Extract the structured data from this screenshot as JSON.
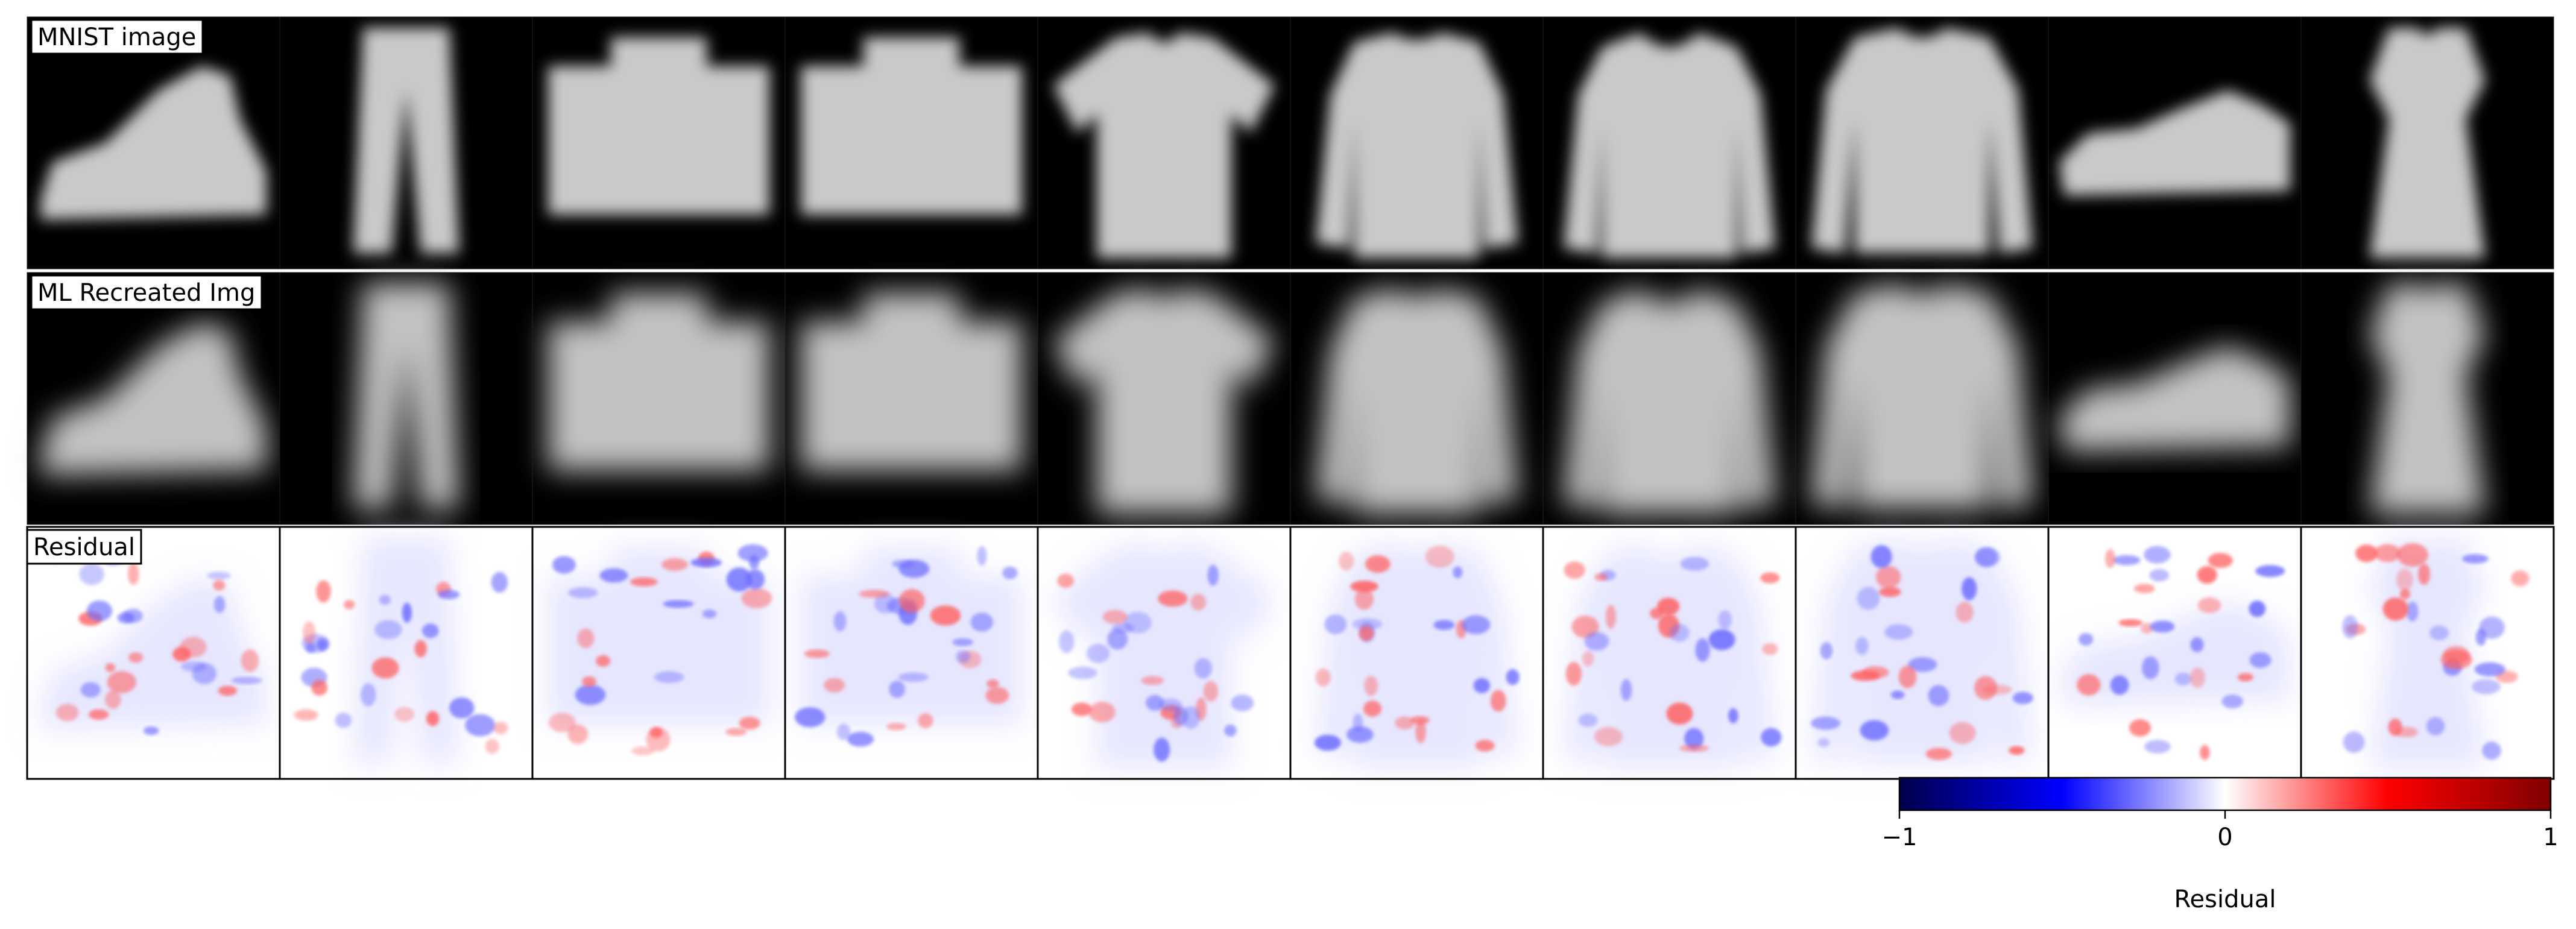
{
  "chart_data": {
    "type": "heatmap",
    "title": "",
    "rows": [
      {
        "name": "MNIST image",
        "colormap": "gray",
        "background": "#000000"
      },
      {
        "name": "ML Recreated Img",
        "colormap": "gray",
        "background": "#000000"
      },
      {
        "name": "Residual",
        "colormap": "seismic",
        "background": "#ffffff"
      }
    ],
    "columns": [
      "ankle boot",
      "trouser",
      "bag",
      "bag",
      "t-shirt/top",
      "shirt",
      "coat",
      "pullover",
      "sandal",
      "dress"
    ],
    "colorbar": {
      "label": "Residual",
      "min": -1,
      "max": 1,
      "ticks": [
        {
          "value": -1,
          "label": "−1"
        },
        {
          "value": 0,
          "label": "0"
        },
        {
          "value": 1,
          "label": "1"
        }
      ],
      "colormap": "seismic",
      "colors": [
        "#00004c",
        "#0000ff",
        "#ffffff",
        "#ff0000",
        "#800000"
      ]
    },
    "grid": false
  }
}
